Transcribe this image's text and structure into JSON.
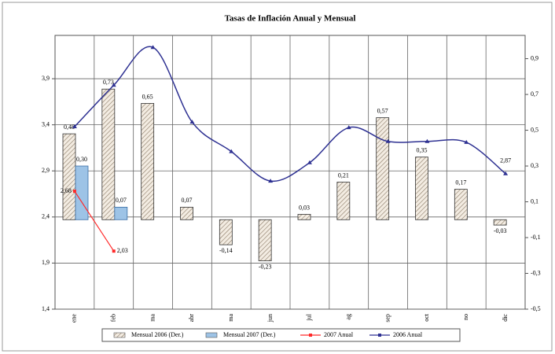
{
  "chart_data": {
    "type": "bar-line",
    "title": "Tasas de Inflación Anual y Mensual",
    "categories": [
      "ene",
      "feb",
      "ma",
      "abr",
      "ma",
      "jun",
      "jul",
      "ag",
      "sep",
      "oct",
      "no",
      "dic"
    ],
    "ylim": [
      1.4,
      4.37
    ],
    "yticks": [
      {
        "value": 1.4,
        "label": "1,4"
      },
      {
        "value": 1.9,
        "label": "1,9"
      },
      {
        "value": 2.4,
        "label": "2,4"
      },
      {
        "value": 2.9,
        "label": "2,9"
      },
      {
        "value": 3.4,
        "label": "3,4"
      },
      {
        "value": 3.9,
        "label": "3,9"
      }
    ],
    "y2lim": [
      -0.5,
      1.03
    ],
    "y2ticks": [
      {
        "value": -0.5,
        "label": "-0,5"
      },
      {
        "value": -0.3,
        "label": "-0,3"
      },
      {
        "value": -0.1,
        "label": "-0,1"
      },
      {
        "value": 0.1,
        "label": "0,1"
      },
      {
        "value": 0.3,
        "label": "0,3"
      },
      {
        "value": 0.5,
        "label": "0,5"
      },
      {
        "value": 0.7,
        "label": "0,7"
      },
      {
        "value": 0.9,
        "label": "0,9"
      }
    ],
    "grid": true,
    "series": [
      {
        "name": "Mensual 2006 (Der.)",
        "type": "bar",
        "axis": "y2",
        "color": "#e8dccb",
        "values": [
          0.48,
          0.73,
          0.65,
          0.07,
          -0.14,
          -0.23,
          0.03,
          0.21,
          0.57,
          0.35,
          0.17,
          -0.03
        ],
        "value_labels": [
          "0,48",
          "0,73",
          "0,65",
          "0,07",
          "-0,14",
          "-0,23",
          "0,03",
          "0,21",
          "0,57",
          "0,35",
          "0,17",
          "-0,03"
        ]
      },
      {
        "name": "Mensual 2007 (Der.)",
        "type": "bar",
        "axis": "y2",
        "color": "#9dc3e6",
        "values": [
          0.3,
          0.07,
          null,
          null,
          null,
          null,
          null,
          null,
          null,
          null,
          null,
          null
        ],
        "value_labels": [
          "0,30",
          "0,07",
          null,
          null,
          null,
          null,
          null,
          null,
          null,
          null,
          null,
          null
        ]
      },
      {
        "name": "2007 Anual",
        "type": "line",
        "color": "#ff2a2a",
        "values": [
          2.68,
          2.03,
          null,
          null,
          null,
          null,
          null,
          null,
          null,
          null,
          null,
          null
        ],
        "value_labels": [
          "2,68",
          "2,03",
          null,
          null,
          null,
          null,
          null,
          null,
          null,
          null,
          null,
          null
        ]
      },
      {
        "name": "2006 Anual",
        "type": "line",
        "color": "#2e3192",
        "values": [
          3.38,
          3.83,
          4.24,
          3.43,
          3.11,
          2.79,
          2.99,
          3.37,
          3.22,
          3.22,
          3.21,
          2.87
        ],
        "value_labels": [
          null,
          null,
          null,
          null,
          null,
          null,
          null,
          null,
          null,
          null,
          null,
          "2,87"
        ]
      }
    ]
  }
}
